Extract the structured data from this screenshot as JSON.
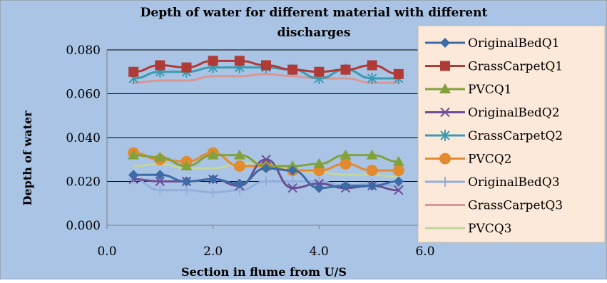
{
  "chart_data": {
    "type": "line",
    "title_lines": [
      "Depth of water for different material with different",
      "discharges"
    ],
    "xlabel": "Section in flume from U/S",
    "ylabel": "Depth of water",
    "xlim": [
      0,
      6
    ],
    "ylim": [
      0,
      0.08
    ],
    "xticks": [
      "0.0",
      "2.0",
      "4.0",
      "6.0"
    ],
    "yticks": [
      "0.000",
      "0.020",
      "0.040",
      "0.060",
      "0.080"
    ],
    "grid": "horizontal",
    "legend_position": "right",
    "x": [
      0.5,
      1.0,
      1.5,
      2.0,
      2.5,
      3.0,
      3.5,
      4.0,
      4.5,
      5.0,
      5.5
    ],
    "series": [
      {
        "name": "OriginalBedQ1",
        "color": "#3d6ba8",
        "marker": "diamond",
        "values": [
          0.023,
          0.023,
          0.02,
          0.021,
          0.019,
          0.026,
          0.025,
          0.017,
          0.018,
          0.018,
          0.02
        ]
      },
      {
        "name": "GrassCarpetQ1",
        "color": "#b03a36",
        "marker": "square",
        "values": [
          0.07,
          0.073,
          0.072,
          0.075,
          0.075,
          0.073,
          0.071,
          0.07,
          0.071,
          0.073,
          0.069
        ]
      },
      {
        "name": "PVCQ1",
        "color": "#82a13c",
        "marker": "triangle",
        "values": [
          0.032,
          0.031,
          0.027,
          0.032,
          0.032,
          0.027,
          0.027,
          0.028,
          0.032,
          0.032,
          0.029
        ]
      },
      {
        "name": "OriginalBedQ2",
        "color": "#6a4f96",
        "marker": "x",
        "values": [
          0.021,
          0.02,
          0.02,
          0.021,
          0.018,
          0.03,
          0.017,
          0.019,
          0.017,
          0.018,
          0.016
        ]
      },
      {
        "name": "GrassCarpetQ2",
        "color": "#3a9ab0",
        "marker": "star",
        "values": [
          0.067,
          0.07,
          0.07,
          0.072,
          0.072,
          0.072,
          0.071,
          0.067,
          0.071,
          0.067,
          0.067
        ]
      },
      {
        "name": "PVCQ2",
        "color": "#e38a2e",
        "marker": "circle",
        "values": [
          0.033,
          0.03,
          0.029,
          0.033,
          0.027,
          0.027,
          0.025,
          0.025,
          0.028,
          0.025,
          0.025
        ]
      },
      {
        "name": "OriginalBedQ3",
        "color": "#93aedb",
        "marker": "plus",
        "values": [
          0.021,
          0.016,
          0.016,
          0.015,
          0.016,
          0.02,
          0.02,
          0.02,
          0.018,
          0.019,
          0.018
        ]
      },
      {
        "name": "GrassCarpetQ3",
        "color": "#d99694",
        "marker": "none",
        "values": [
          0.065,
          0.066,
          0.066,
          0.068,
          0.068,
          0.069,
          0.068,
          0.067,
          0.067,
          0.065,
          0.065
        ]
      },
      {
        "name": "PVCQ3",
        "color": "#c3d69b",
        "marker": "none",
        "values": [
          0.027,
          0.028,
          0.026,
          0.026,
          0.028,
          0.029,
          0.025,
          0.024,
          0.023,
          0.023,
          0.022
        ]
      }
    ]
  },
  "colors": {
    "plot_background": "#a9c4e5",
    "legend_background": "#fde9d9",
    "gridline": "#000000",
    "axis": "#808080"
  }
}
